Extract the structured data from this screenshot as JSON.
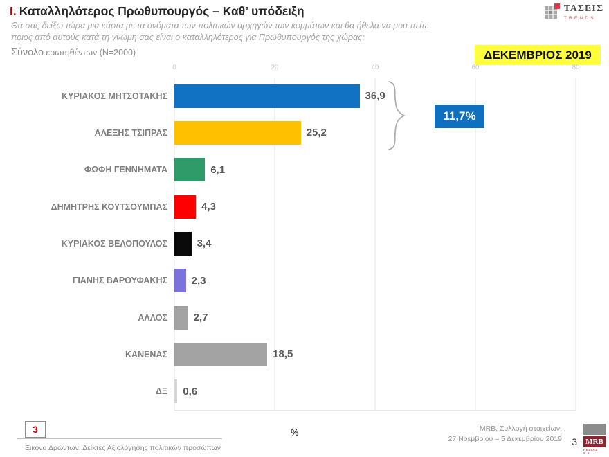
{
  "header": {
    "title_no": "Ι.",
    "title": "Καταλληλότερος  Πρωθυπουργός – Καθ’ υπόδειξη",
    "question_line1": "Θα σας δείξω τώρα μια κάρτα με τα ονόματα των πολιτικών αρχηγών των κομμάτων και θα ήθελα να μου πείτε",
    "question_line2": "ποιος από αυτούς κατά τη γνώμη σας είναι ο καταλληλότερος για Πρωθυπουργός της χώρας;",
    "sample_bold": "Σύνολο",
    "sample_rest": "ερωτηθέντων (N=2000)",
    "period_badge": "ΔΕΚΕΜΒΡΙΟΣ 2019",
    "taseis_logo": {
      "name": "ΤΑΣΕΙΣ",
      "sub": "TRENDS"
    }
  },
  "chart_data": {
    "type": "bar",
    "orientation": "horizontal",
    "categories": [
      "ΚΥΡΙΑΚΟΣ ΜΗΤΣΟΤΑΚΗΣ",
      "ΑΛΕΞΗΣ ΤΣΙΠΡΑΣ",
      "ΦΩΦΗ ΓΕΝΝΗΜΑΤΑ",
      "ΔΗΜΗΤΡΗΣ ΚΟΥΤΣΟΥΜΠΑΣ",
      "ΚΥΡΙΑΚΟΣ ΒΕΛΟΠΟΥΛΟΣ",
      "ΓΙΑΝΗΣ ΒΑΡΟΥΦΑΚΗΣ",
      "ΑΛΛΟΣ",
      "ΚΑΝΕΝΑΣ",
      "ΔΞ"
    ],
    "values": [
      36.9,
      25.2,
      6.1,
      4.3,
      3.4,
      2.3,
      2.7,
      18.5,
      0.6
    ],
    "value_labels": [
      "36,9",
      "25,2",
      "6,1",
      "4,3",
      "3,4",
      "2,3",
      "2,7",
      "18,5",
      "0,6"
    ],
    "colors": [
      "#1172C3",
      "#FFC000",
      "#2E9B68",
      "#FF0000",
      "#0A0A0A",
      "#7B72DC",
      "#A3A3A3",
      "#A3A3A3",
      "#D6D6D6"
    ],
    "xlim": [
      0,
      80
    ],
    "x_ticks": [
      0,
      20,
      40,
      60,
      80
    ],
    "xlabel": "%",
    "grid": true,
    "legend": "none",
    "annotation": {
      "label": "11,7%",
      "color": "#1070C0"
    }
  },
  "footer": {
    "page_box": "3",
    "caption": "Εικόνα Δρώντων: Δείκτες Αξιολόγησης πολιτικών προσώπων",
    "source_line1": "MRB, Συλλογή στοιχείων:",
    "source_line2": "27 Νοεμβρίου – 5 Δεκεμβρίου 2019",
    "page_number": "3",
    "mrb_logo": {
      "text": "MRB",
      "sub": "HELLAS S.A."
    }
  }
}
